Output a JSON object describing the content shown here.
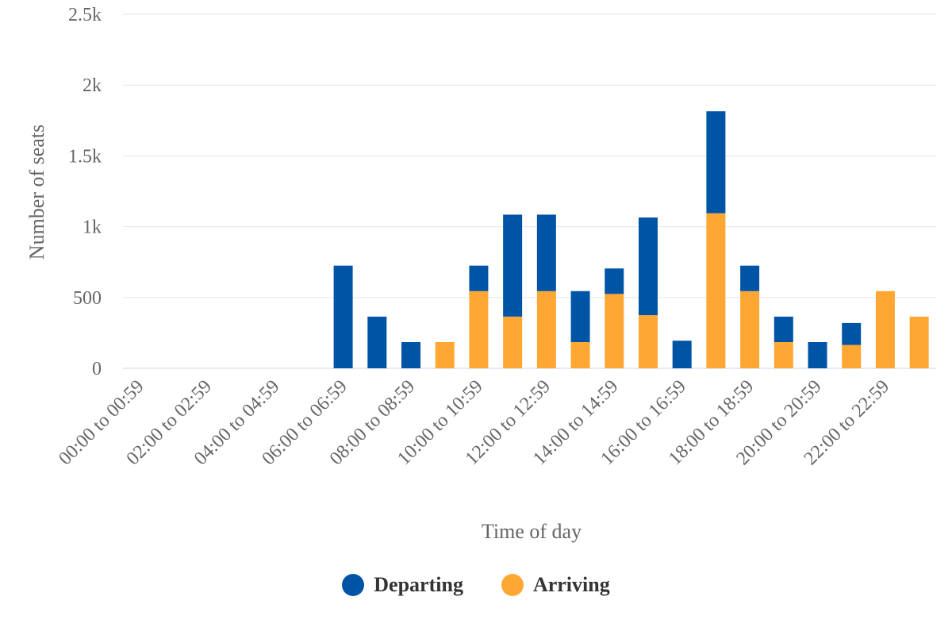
{
  "chart_data": {
    "type": "bar",
    "stacked": true,
    "title": "",
    "xlabel": "Time of day",
    "ylabel": "Number of seats",
    "ylim": [
      0,
      2500
    ],
    "y_ticks": [
      {
        "value": 0,
        "label": "0"
      },
      {
        "value": 500,
        "label": "500"
      },
      {
        "value": 1000,
        "label": "1k"
      },
      {
        "value": 1500,
        "label": "1.5k"
      },
      {
        "value": 2000,
        "label": "2k"
      },
      {
        "value": 2500,
        "label": "2.5k"
      }
    ],
    "grid": true,
    "legend_position": "bottom-center",
    "categories": [
      "00:00 to 00:59",
      "01:00 to 01:59",
      "02:00 to 02:59",
      "03:00 to 03:59",
      "04:00 to 04:59",
      "05:00 to 05:59",
      "06:00 to 06:59",
      "07:00 to 07:59",
      "08:00 to 08:59",
      "09:00 to 09:59",
      "10:00 to 10:59",
      "11:00 to 11:59",
      "12:00 to 12:59",
      "13:00 to 13:59",
      "14:00 to 14:59",
      "15:00 to 15:59",
      "16:00 to 16:59",
      "17:00 to 17:59",
      "18:00 to 18:59",
      "19:00 to 19:59",
      "20:00 to 20:59",
      "21:00 to 21:59",
      "22:00 to 22:59",
      "23:00 to 23:59"
    ],
    "visible_x_labels": [
      "00:00 to 00:59",
      "02:00 to 02:59",
      "04:00 to 04:59",
      "06:00 to 06:59",
      "08:00 to 08:59",
      "10:00 to 10:59",
      "12:00 to 12:59",
      "14:00 to 14:59",
      "16:00 to 16:59",
      "18:00 to 18:59",
      "20:00 to 20:59",
      "22:00 to 22:59"
    ],
    "series": [
      {
        "name": "Arriving",
        "color": "#FFA733",
        "values": [
          0,
          0,
          0,
          0,
          0,
          0,
          0,
          0,
          0,
          185,
          545,
          365,
          545,
          185,
          525,
          375,
          0,
          1095,
          545,
          185,
          0,
          165,
          545,
          365
        ]
      },
      {
        "name": "Departing",
        "color": "#0054A6",
        "values": [
          0,
          0,
          0,
          0,
          0,
          0,
          725,
          365,
          185,
          0,
          180,
          720,
          540,
          360,
          180,
          690,
          195,
          720,
          180,
          180,
          185,
          155,
          0,
          0
        ]
      }
    ]
  },
  "legend": {
    "items": [
      {
        "label": "Departing",
        "color": "#0054A6"
      },
      {
        "label": "Arriving",
        "color": "#FFA733"
      }
    ]
  }
}
